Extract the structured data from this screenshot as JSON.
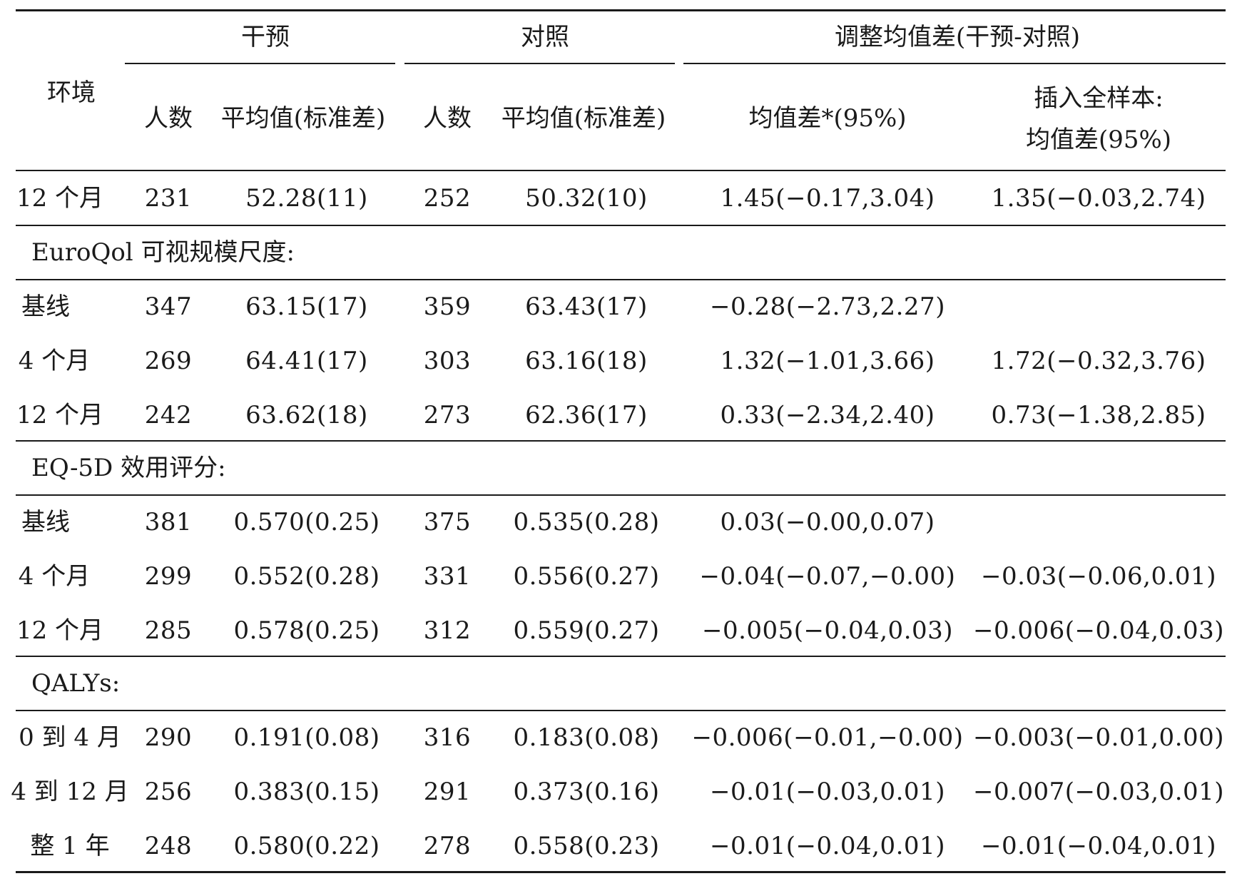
{
  "header": {
    "env": "环境",
    "group_intervention": "干预",
    "group_control": "对照",
    "group_diff": "调整均值差(干预-对照)",
    "n_intervention": "人数",
    "mean_intervention": "平均值(标准差)",
    "n_control": "人数",
    "mean_control": "平均值(标准差)",
    "diff_ci": "均值差*(95%)",
    "imputed_line1": "插入全样本:",
    "imputed_line2": "均值差(95%)"
  },
  "rows": [
    {
      "label": "12 个月",
      "n1": "231",
      "m1": "52.28(11)",
      "n2": "252",
      "m2": "50.32(10)",
      "d": "1.45(−0.17,3.04)",
      "di": "1.35(−0.03,2.74)"
    },
    {
      "section": "EuroQol 可视规模尺度:"
    },
    {
      "label": "基线",
      "n1": "347",
      "m1": "63.15(17)",
      "n2": "359",
      "m2": "63.43(17)",
      "d": "−0.28(−2.73,2.27)",
      "di": ""
    },
    {
      "label": "4 个月",
      "n1": "269",
      "m1": "64.41(17)",
      "n2": "303",
      "m2": "63.16(18)",
      "d": "1.32(−1.01,3.66)",
      "di": "1.72(−0.32,3.76)"
    },
    {
      "label": "12 个月",
      "n1": "242",
      "m1": "63.62(18)",
      "n2": "273",
      "m2": "62.36(17)",
      "d": "0.33(−2.34,2.40)",
      "di": "0.73(−1.38,2.85)"
    },
    {
      "section": "EQ-5D 效用评分:"
    },
    {
      "label": "基线",
      "n1": "381",
      "m1": "0.570(0.25)",
      "n2": "375",
      "m2": "0.535(0.28)",
      "d": "0.03(−0.00,0.07)",
      "di": ""
    },
    {
      "label": "4 个月",
      "n1": "299",
      "m1": "0.552(0.28)",
      "n2": "331",
      "m2": "0.556(0.27)",
      "d": "−0.04(−0.07,−0.00)",
      "di": "−0.03(−0.06,0.01)"
    },
    {
      "label": "12 个月",
      "n1": "285",
      "m1": "0.578(0.25)",
      "n2": "312",
      "m2": "0.559(0.27)",
      "d": "−0.005(−0.04,0.03)",
      "di": "−0.006(−0.04,0.03)"
    },
    {
      "section": "QALYs:"
    },
    {
      "label": "0 到 4 月",
      "n1": "290",
      "m1": "0.191(0.08)",
      "n2": "316",
      "m2": "0.183(0.08)",
      "d": "−0.006(−0.01,−0.00)",
      "di": "−0.003(−0.01,0.00)"
    },
    {
      "label": "4 到 12 月",
      "n1": "256",
      "m1": "0.383(0.15)",
      "n2": "291",
      "m2": "0.373(0.16)",
      "d": "−0.01(−0.03,0.01)",
      "di": "−0.007(−0.03,0.01)"
    },
    {
      "label": "整 1 年",
      "n1": "248",
      "m1": "0.580(0.22)",
      "n2": "278",
      "m2": "0.558(0.23)",
      "d": "−0.01(−0.04,0.01)",
      "di": "−0.01(−0.04,0.01)"
    }
  ]
}
